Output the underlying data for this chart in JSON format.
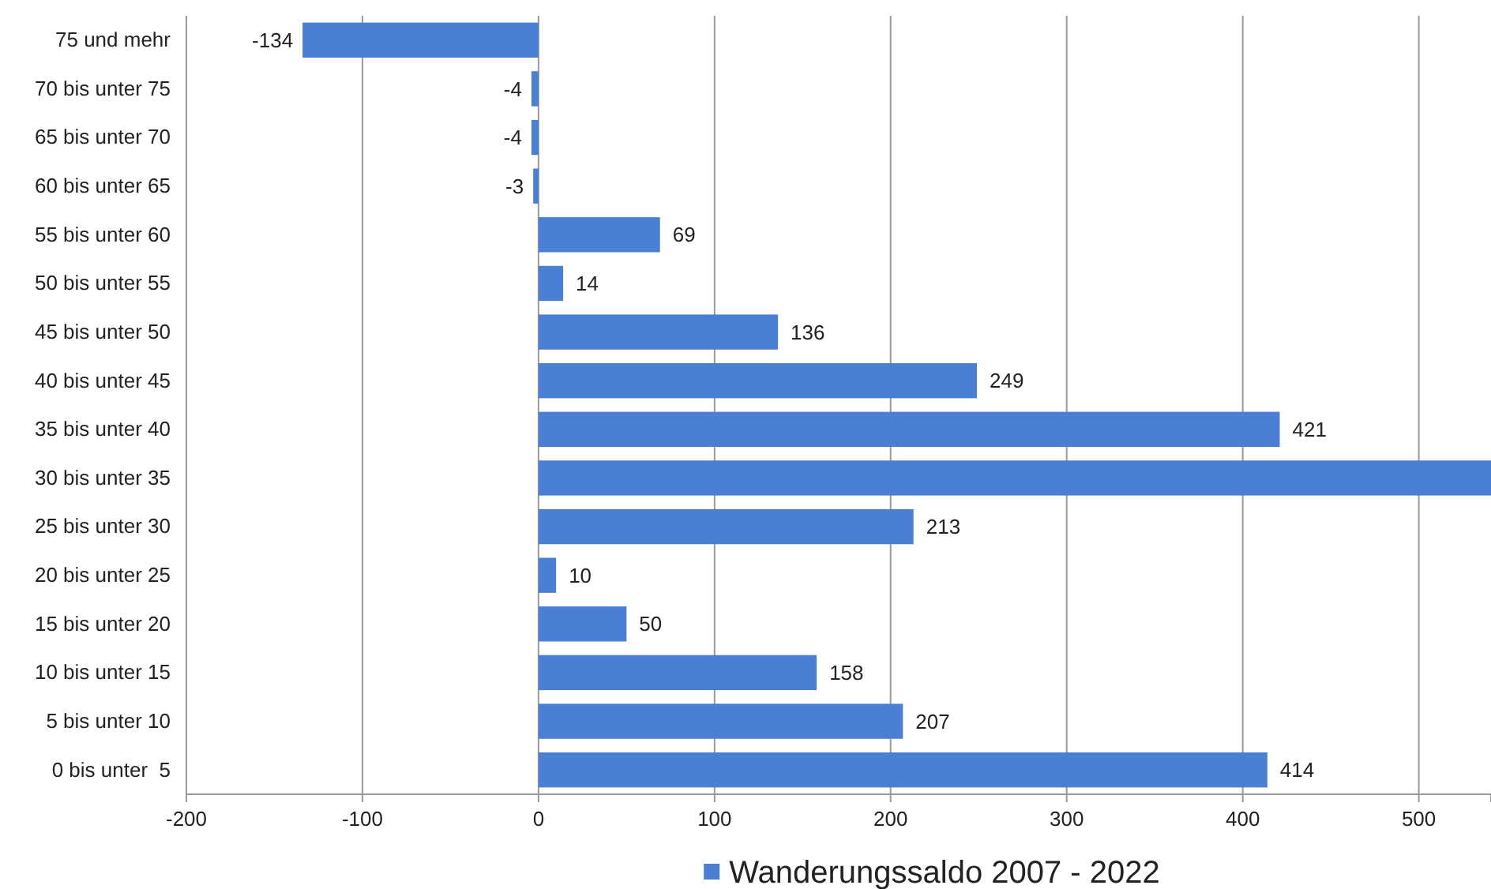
{
  "chart_data": {
    "type": "bar",
    "orientation": "horizontal",
    "categories": [
      "75 und mehr",
      "70 bis unter 75",
      "65 bis unter 70",
      "60 bis unter 65",
      "55 bis unter 60",
      "50 bis unter 55",
      "45 bis unter 50",
      "40 bis unter 45",
      "35 bis unter 40",
      "30 bis unter 35",
      "25 bis unter 30",
      "20 bis unter 25",
      "15 bis unter 20",
      "10 bis unter 15",
      "5 bis unter 10",
      "0 bis unter  5"
    ],
    "series": [
      {
        "name": "Wanderungssaldo 2007 - 2022",
        "color": "#4a7fd4",
        "values": [
          -134,
          -4,
          -4,
          -3,
          69,
          14,
          136,
          249,
          421,
          541,
          213,
          10,
          50,
          158,
          207,
          414
        ],
        "value_labels": [
          "-134",
          "-4",
          "-4",
          "-3",
          "69",
          "14",
          "136",
          "249",
          "421",
          null,
          "213",
          "10",
          "50",
          "158",
          "207",
          "414"
        ]
      }
    ],
    "xlim": [
      -200,
      541
    ],
    "xticks": [
      -200,
      -100,
      0,
      100,
      200,
      300,
      400,
      500
    ],
    "grid": "x",
    "legend": "bottom"
  }
}
